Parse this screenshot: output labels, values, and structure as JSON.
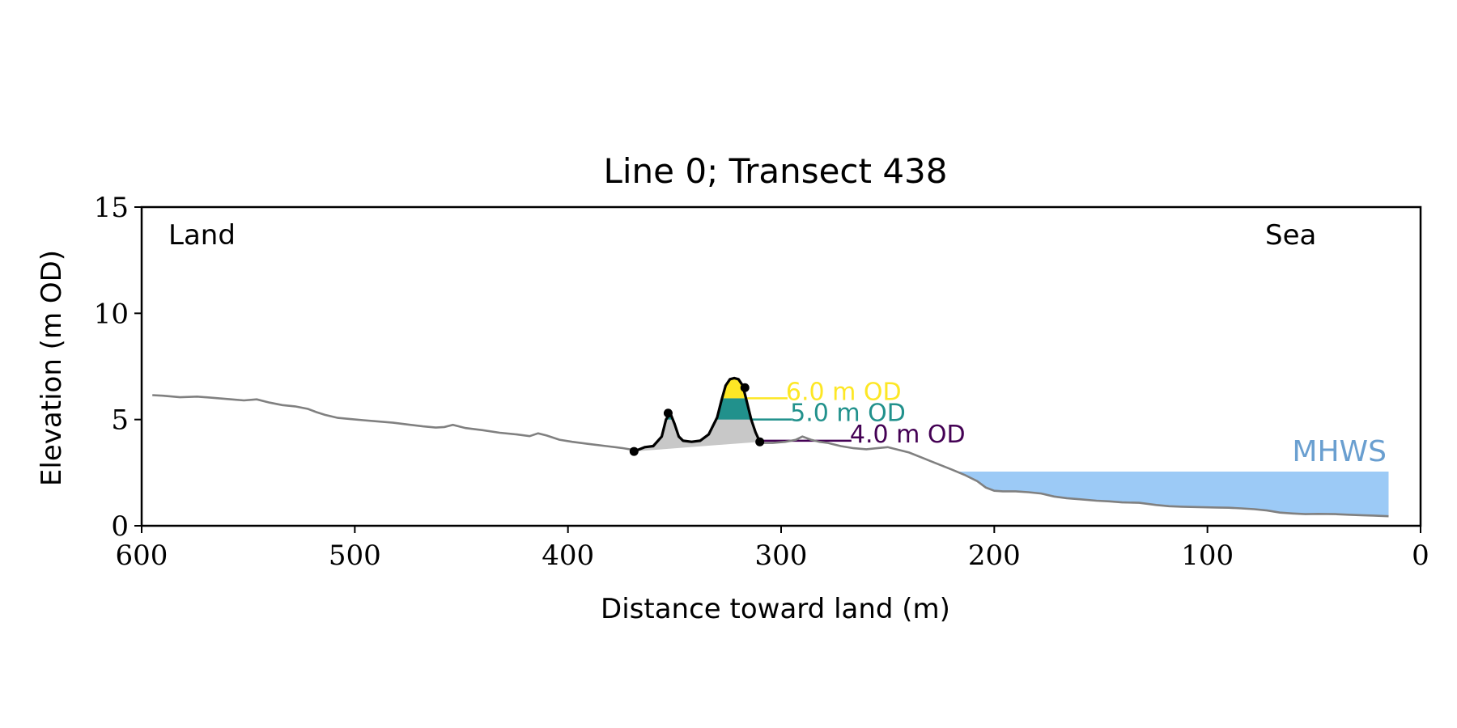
{
  "chart_data": {
    "type": "line",
    "title": "Line 0; Transect 438",
    "xlabel": "Distance toward land (m)",
    "ylabel": "Elevation (m OD)",
    "xlim": [
      600,
      0
    ],
    "ylim": [
      0,
      15
    ],
    "x_ticks": [
      600,
      500,
      400,
      300,
      200,
      100,
      0
    ],
    "y_ticks": [
      0,
      5,
      10,
      15
    ],
    "grid": false,
    "annotations": {
      "land": "Land",
      "sea": "Sea",
      "mhws_label": "MHWS"
    },
    "mhws": {
      "level": 2.55,
      "x_start": 217,
      "x_end": 15,
      "color": "#9ccaf6"
    },
    "profile": {
      "color": "#808080",
      "x": [
        595,
        590,
        582,
        574,
        566,
        558,
        552,
        546,
        540,
        534,
        528,
        522,
        518,
        514,
        508,
        502,
        496,
        490,
        482,
        474,
        468,
        462,
        458,
        454,
        448,
        440,
        432,
        424,
        418,
        414,
        410,
        404,
        398,
        390,
        382,
        374,
        368
      ],
      "y": [
        6.15,
        6.12,
        6.05,
        6.08,
        6.02,
        5.95,
        5.9,
        5.95,
        5.8,
        5.68,
        5.62,
        5.5,
        5.35,
        5.22,
        5.08,
        5.02,
        4.97,
        4.92,
        4.85,
        4.75,
        4.68,
        4.62,
        4.65,
        4.75,
        4.6,
        4.5,
        4.38,
        4.3,
        4.22,
        4.35,
        4.25,
        4.05,
        3.95,
        3.85,
        3.75,
        3.65,
        3.55
      ]
    },
    "profile_seaward": {
      "x": [
        310,
        304,
        298,
        293,
        290,
        286,
        282,
        278,
        272,
        266,
        260,
        255,
        250,
        240,
        230,
        220,
        214,
        208,
        204,
        200,
        196,
        190,
        184,
        178,
        172,
        166,
        160,
        152,
        146,
        140,
        132,
        124,
        118,
        112,
        104,
        96,
        90,
        84,
        78,
        72,
        66,
        60,
        54,
        48,
        40,
        34,
        28,
        22,
        15
      ],
      "y": [
        3.9,
        3.9,
        3.95,
        4.05,
        4.2,
        4.05,
        3.95,
        3.9,
        3.75,
        3.65,
        3.6,
        3.65,
        3.7,
        3.45,
        3.05,
        2.65,
        2.4,
        2.1,
        1.8,
        1.65,
        1.62,
        1.62,
        1.58,
        1.52,
        1.38,
        1.3,
        1.25,
        1.18,
        1.15,
        1.1,
        1.08,
        0.98,
        0.92,
        0.9,
        0.88,
        0.86,
        0.85,
        0.82,
        0.78,
        0.72,
        0.62,
        0.58,
        0.55,
        0.56,
        0.55,
        0.52,
        0.5,
        0.48,
        0.45
      ]
    },
    "dune": {
      "color": "#000000",
      "x": [
        369,
        364,
        360,
        356,
        354,
        352,
        350,
        348,
        346,
        342,
        338,
        334,
        330,
        328,
        326,
        324,
        322,
        320,
        318,
        316,
        314,
        312,
        310
      ],
      "y": [
        3.5,
        3.7,
        3.75,
        4.2,
        5.0,
        5.3,
        4.8,
        4.2,
        4.0,
        3.95,
        4.0,
        4.3,
        5.1,
        5.9,
        6.6,
        6.9,
        6.95,
        6.9,
        6.6,
        5.8,
        5.0,
        4.4,
        3.95
      ]
    },
    "dune_points": [
      {
        "x": 369,
        "y": 3.5
      },
      {
        "x": 353,
        "y": 5.3
      },
      {
        "x": 317,
        "y": 6.5
      },
      {
        "x": 310,
        "y": 3.95
      }
    ],
    "base_fill_color": "#c8c8c8",
    "volume_bands": [
      {
        "label": "6.0 m OD",
        "level": 6.0,
        "color": "#fde725",
        "line_x_end": 297
      },
      {
        "label": "5.0 m OD",
        "level": 5.0,
        "color": "#21918c",
        "line_x_end": 295
      },
      {
        "label": "4.0 m OD",
        "level": 4.0,
        "color": "#440154",
        "line_x_end": 267
      }
    ]
  }
}
